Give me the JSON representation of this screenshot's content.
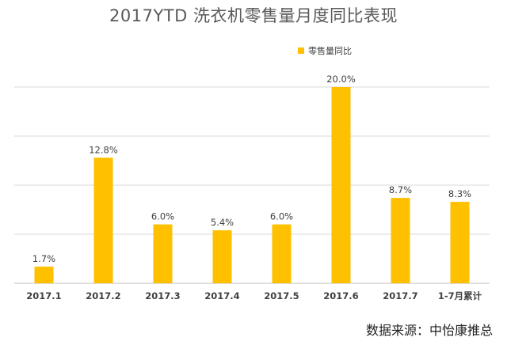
{
  "chart_data": {
    "type": "bar",
    "title": "2017YTD 洗衣机零售量月度同比表现",
    "categories": [
      "2017.1",
      "2017.2",
      "2017.3",
      "2017.4",
      "2017.5",
      "2017.6",
      "2017.7",
      "1-7月累计"
    ],
    "series": [
      {
        "name": "零售量同比",
        "values": [
          1.7,
          12.8,
          6.0,
          5.4,
          6.0,
          20.0,
          8.7,
          8.3
        ],
        "data_labels": [
          "1.7%",
          "12.8%",
          "6.0%",
          "5.4%",
          "6.0%",
          "20.0%",
          "8.7%",
          "8.3%"
        ]
      }
    ],
    "ylim": [
      0,
      20
    ],
    "y_unit": "%",
    "grid": true,
    "legend_position": "top-right",
    "bar_color": "#FFC000",
    "grid_color": "#D9D9D9"
  },
  "source_text": "数据来源：中怡康推总"
}
